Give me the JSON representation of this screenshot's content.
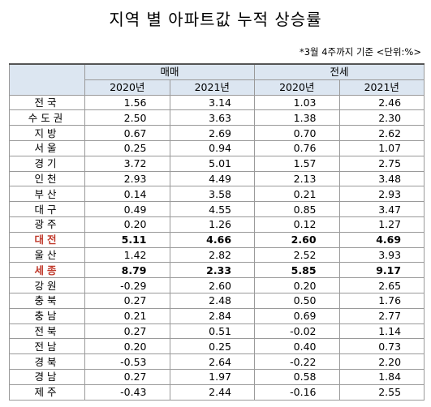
{
  "title": "지역 별 아파트값 누적 상승률",
  "note": "*3월 4주까지 기준 <단위:%>",
  "headers": {
    "group1": "매매",
    "group2": "전세",
    "years": [
      "2020년",
      "2021년",
      "2020년",
      "2021년"
    ]
  },
  "rows": [
    {
      "region": "전국",
      "values": [
        "1.56",
        "3.14",
        "1.03",
        "2.46"
      ],
      "highlight": false
    },
    {
      "region": "수도권",
      "values": [
        "2.50",
        "3.63",
        "1.38",
        "2.30"
      ],
      "highlight": false
    },
    {
      "region": "지방",
      "values": [
        "0.67",
        "2.69",
        "0.70",
        "2.62"
      ],
      "highlight": false
    },
    {
      "region": "서울",
      "values": [
        "0.25",
        "0.94",
        "0.76",
        "1.07"
      ],
      "highlight": false
    },
    {
      "region": "경기",
      "values": [
        "3.72",
        "5.01",
        "1.57",
        "2.75"
      ],
      "highlight": false
    },
    {
      "region": "인천",
      "values": [
        "2.93",
        "4.49",
        "2.13",
        "3.48"
      ],
      "highlight": false
    },
    {
      "region": "부산",
      "values": [
        "0.14",
        "3.58",
        "0.21",
        "2.93"
      ],
      "highlight": false
    },
    {
      "region": "대구",
      "values": [
        "0.49",
        "4.55",
        "0.85",
        "3.47"
      ],
      "highlight": false
    },
    {
      "region": "광주",
      "values": [
        "0.20",
        "1.26",
        "0.12",
        "1.27"
      ],
      "highlight": false
    },
    {
      "region": "대전",
      "values": [
        "5.11",
        "4.66",
        "2.60",
        "4.69"
      ],
      "highlight": true
    },
    {
      "region": "울산",
      "values": [
        "1.42",
        "2.82",
        "2.52",
        "3.93"
      ],
      "highlight": false
    },
    {
      "region": "세종",
      "values": [
        "8.79",
        "2.33",
        "5.85",
        "9.17"
      ],
      "highlight": true
    },
    {
      "region": "강원",
      "values": [
        "-0.29",
        "2.60",
        "0.20",
        "2.65"
      ],
      "highlight": false
    },
    {
      "region": "충북",
      "values": [
        "0.27",
        "2.48",
        "0.50",
        "1.76"
      ],
      "highlight": false
    },
    {
      "region": "충남",
      "values": [
        "0.21",
        "2.84",
        "0.69",
        "2.77"
      ],
      "highlight": false
    },
    {
      "region": "전북",
      "values": [
        "0.27",
        "0.51",
        "-0.02",
        "1.14"
      ],
      "highlight": false
    },
    {
      "region": "전남",
      "values": [
        "0.20",
        "0.25",
        "0.40",
        "0.73"
      ],
      "highlight": false
    },
    {
      "region": "경북",
      "values": [
        "-0.53",
        "2.64",
        "-0.22",
        "2.20"
      ],
      "highlight": false
    },
    {
      "region": "경남",
      "values": [
        "0.27",
        "1.97",
        "0.58",
        "1.84"
      ],
      "highlight": false
    },
    {
      "region": "제주",
      "values": [
        "-0.43",
        "2.44",
        "-0.16",
        "2.55"
      ],
      "highlight": false
    }
  ]
}
